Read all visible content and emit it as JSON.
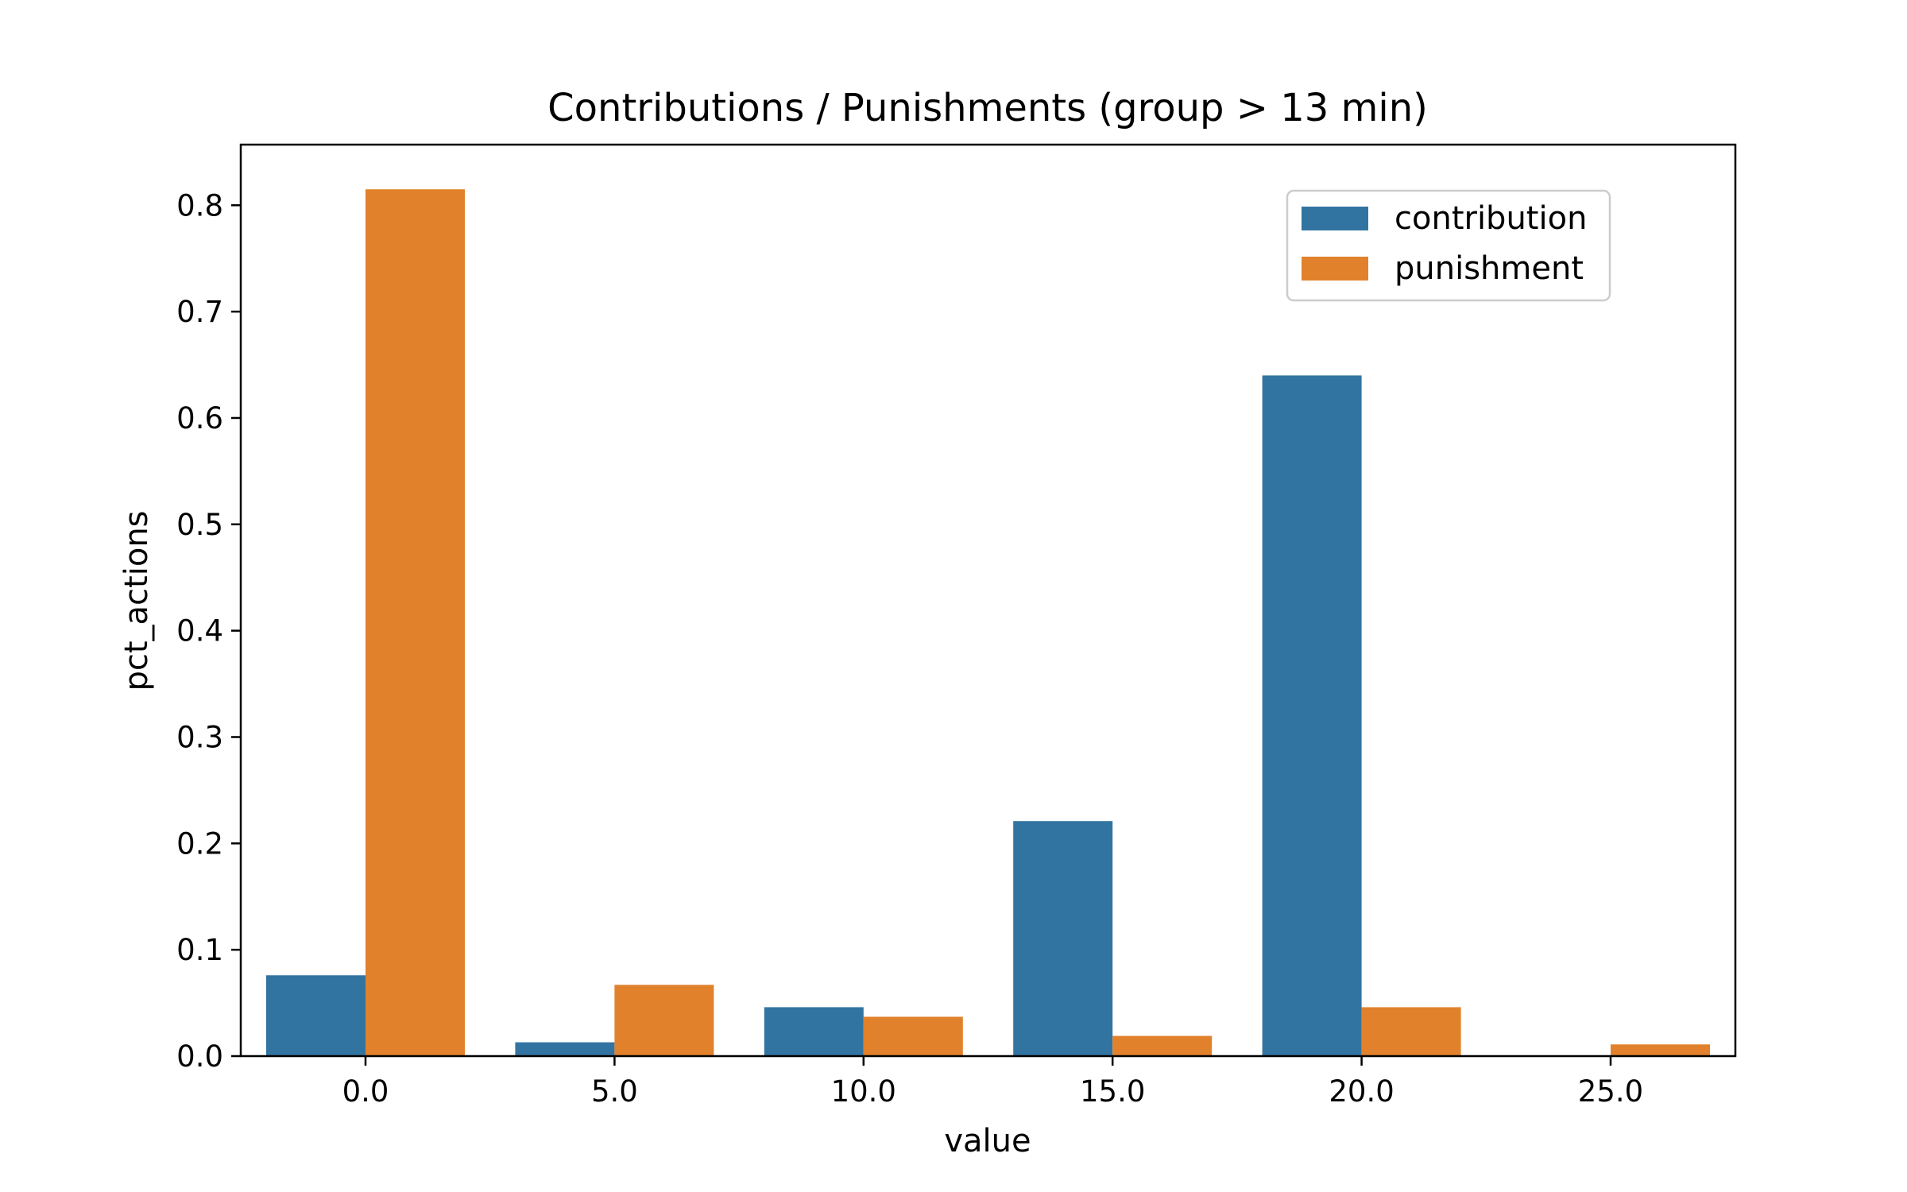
{
  "chart_data": {
    "type": "bar",
    "title": "Contributions / Punishments (group > 13 min)",
    "xlabel": "value",
    "ylabel": "pct_actions",
    "categories": [
      "0.0",
      "5.0",
      "10.0",
      "15.0",
      "20.0",
      "25.0"
    ],
    "series": [
      {
        "name": "contribution",
        "color": "#3274a1",
        "values": [
          0.076,
          0.013,
          0.046,
          0.221,
          0.64,
          0
        ]
      },
      {
        "name": "punishment",
        "color": "#e1812c",
        "values": [
          0.815,
          0.067,
          0.037,
          0.019,
          0.046,
          0.011
        ]
      }
    ],
    "ylim": [
      0,
      0.857
    ],
    "yticks": [
      "0.0",
      "0.1",
      "0.2",
      "0.3",
      "0.4",
      "0.5",
      "0.6",
      "0.7",
      "0.8"
    ],
    "grid": false,
    "legend_position": "top-right"
  }
}
